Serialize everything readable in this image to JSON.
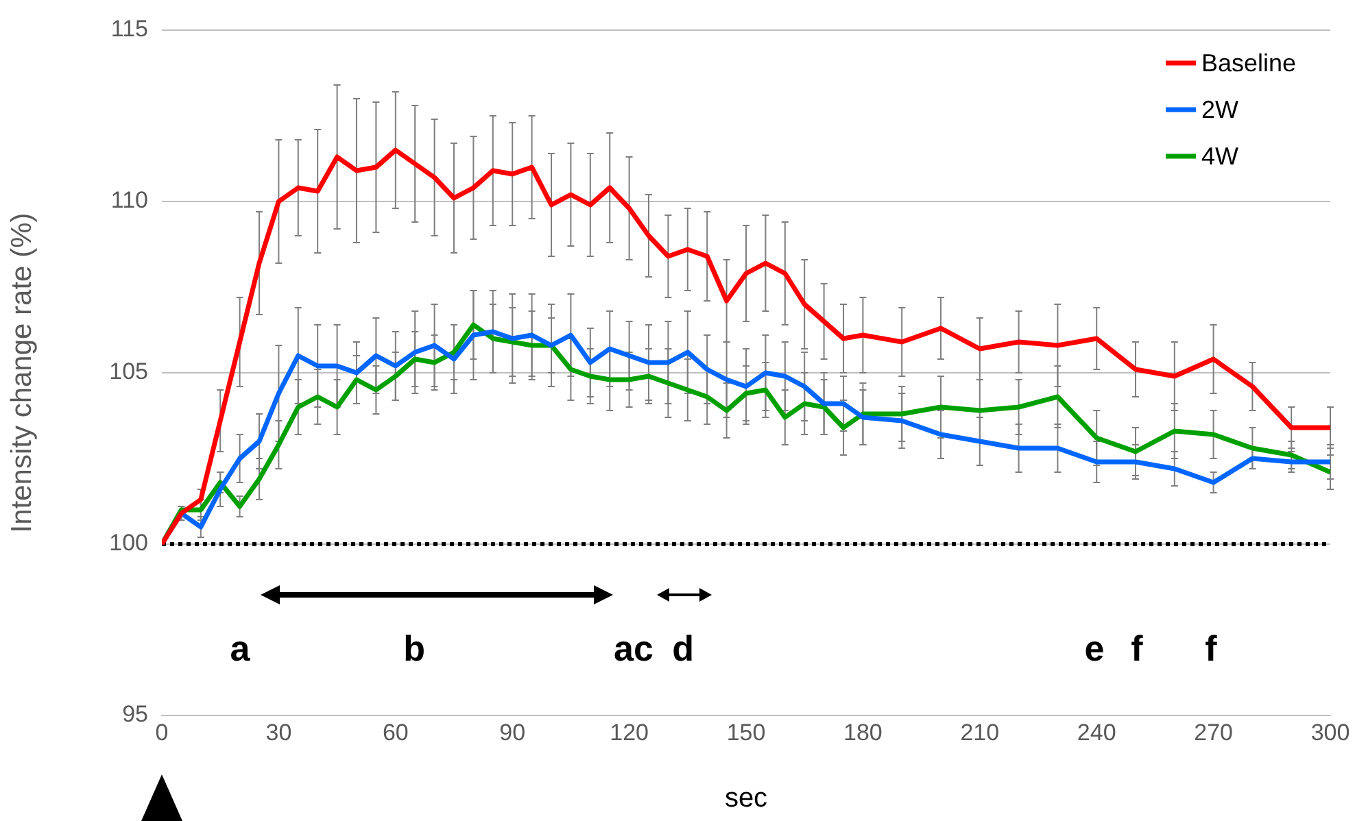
{
  "chart_data": {
    "type": "line",
    "xlabel": "sec",
    "ylabel": "Intensity change rate (%)",
    "x": [
      0,
      5,
      10,
      15,
      20,
      25,
      30,
      35,
      40,
      45,
      50,
      55,
      60,
      65,
      70,
      75,
      80,
      85,
      90,
      95,
      100,
      105,
      110,
      115,
      120,
      125,
      130,
      135,
      140,
      145,
      150,
      155,
      160,
      165,
      170,
      175,
      180,
      190,
      200,
      210,
      220,
      230,
      240,
      250,
      260,
      270,
      280,
      290,
      300
    ],
    "xlim": [
      0,
      300
    ],
    "xticks": [
      0,
      30,
      60,
      90,
      120,
      150,
      180,
      210,
      240,
      270,
      300
    ],
    "ylim": [
      95,
      115
    ],
    "yticks": [
      95,
      100,
      105,
      110,
      115
    ],
    "grid": "y",
    "legend": "top right",
    "marker": "none",
    "line_style": "solid",
    "series": [
      {
        "name": "Baseline",
        "color": "#ff0000",
        "values": [
          100,
          100.9,
          101.3,
          103.6,
          105.9,
          108.2,
          110.0,
          110.4,
          110.3,
          111.3,
          110.9,
          111.0,
          111.5,
          111.1,
          110.7,
          110.1,
          110.4,
          110.9,
          110.8,
          111.0,
          109.9,
          110.2,
          109.9,
          110.4,
          109.8,
          109.0,
          108.4,
          108.6,
          108.4,
          107.1,
          107.9,
          108.2,
          107.9,
          107.0,
          106.5,
          106.0,
          106.1,
          105.9,
          106.3,
          105.7,
          105.9,
          105.8,
          106.0,
          105.1,
          104.9,
          105.4,
          104.6,
          103.4,
          103.4
        ],
        "errors": [
          null,
          0.2,
          0.3,
          0.9,
          1.3,
          1.5,
          1.8,
          1.4,
          1.8,
          2.1,
          2.1,
          1.9,
          1.7,
          1.7,
          1.7,
          1.6,
          1.5,
          1.6,
          1.5,
          1.5,
          1.5,
          1.5,
          1.5,
          1.6,
          1.5,
          1.2,
          1.2,
          1.2,
          1.3,
          1.2,
          1.4,
          1.4,
          1.5,
          1.3,
          1.1,
          1.0,
          1.1,
          1.0,
          0.9,
          0.9,
          0.9,
          1.2,
          0.9,
          0.8,
          1.0,
          1.0,
          0.7,
          0.6,
          0.6
        ]
      },
      {
        "name": "2W",
        "color": "#0066ff",
        "values": [
          100,
          100.9,
          100.5,
          101.6,
          102.5,
          103.0,
          104.4,
          105.5,
          105.2,
          105.2,
          105.0,
          105.5,
          105.2,
          105.6,
          105.8,
          105.4,
          106.1,
          106.2,
          106.0,
          106.1,
          105.8,
          106.1,
          105.3,
          105.7,
          105.5,
          105.3,
          105.3,
          105.6,
          105.1,
          104.8,
          104.6,
          105.0,
          104.9,
          104.6,
          104.1,
          104.1,
          103.7,
          103.6,
          103.2,
          103.0,
          102.8,
          102.8,
          102.4,
          102.4,
          102.2,
          101.8,
          102.5,
          102.4,
          102.4
        ],
        "errors": [
          null,
          null,
          0.3,
          0.5,
          0.7,
          0.8,
          1.4,
          1.4,
          1.2,
          1.2,
          0.9,
          1.1,
          1.0,
          1.2,
          1.2,
          1.0,
          1.3,
          1.2,
          1.3,
          1.2,
          1.2,
          1.2,
          1.0,
          1.1,
          1.0,
          1.1,
          1.2,
          1.2,
          1.0,
          1.1,
          1.1,
          1.1,
          1.0,
          1.0,
          0.9,
          0.8,
          0.8,
          0.8,
          0.7,
          0.7,
          0.7,
          0.7,
          0.6,
          0.5,
          0.5,
          0.3,
          0.3,
          0.3,
          0.5
        ]
      },
      {
        "name": "4W",
        "color": "#00a000",
        "values": [
          100,
          101.0,
          101.0,
          101.8,
          101.1,
          101.9,
          102.9,
          104.0,
          104.3,
          104.0,
          104.8,
          104.5,
          104.9,
          105.4,
          105.3,
          105.6,
          106.4,
          106.0,
          105.9,
          105.8,
          105.8,
          105.1,
          104.9,
          104.8,
          104.8,
          104.9,
          104.7,
          104.5,
          104.3,
          103.9,
          104.4,
          104.5,
          103.7,
          104.1,
          104.0,
          103.4,
          103.8,
          103.8,
          104.0,
          103.9,
          104.0,
          104.3,
          103.1,
          102.7,
          103.3,
          103.2,
          102.8,
          102.6,
          102.1
        ],
        "errors": [
          null,
          null,
          0.3,
          0.3,
          0.3,
          0.6,
          0.7,
          0.8,
          0.8,
          0.8,
          0.7,
          0.7,
          0.7,
          0.8,
          0.8,
          0.8,
          1.0,
          1.0,
          1.0,
          1.0,
          0.8,
          0.9,
          0.8,
          0.9,
          0.8,
          0.8,
          1.0,
          0.9,
          0.8,
          0.8,
          0.8,
          0.8,
          0.8,
          0.9,
          0.8,
          0.8,
          0.9,
          0.8,
          0.9,
          0.9,
          0.8,
          0.9,
          0.8,
          0.7,
          0.8,
          0.7,
          0.6,
          0.4,
          0.5
        ]
      }
    ],
    "ref_lines": [
      {
        "axis": "y",
        "value": 100,
        "color": "#000000",
        "line_style": "dotted"
      }
    ],
    "annotations": [
      "a",
      "b",
      "ac",
      "d",
      "e",
      "f",
      "f"
    ]
  }
}
